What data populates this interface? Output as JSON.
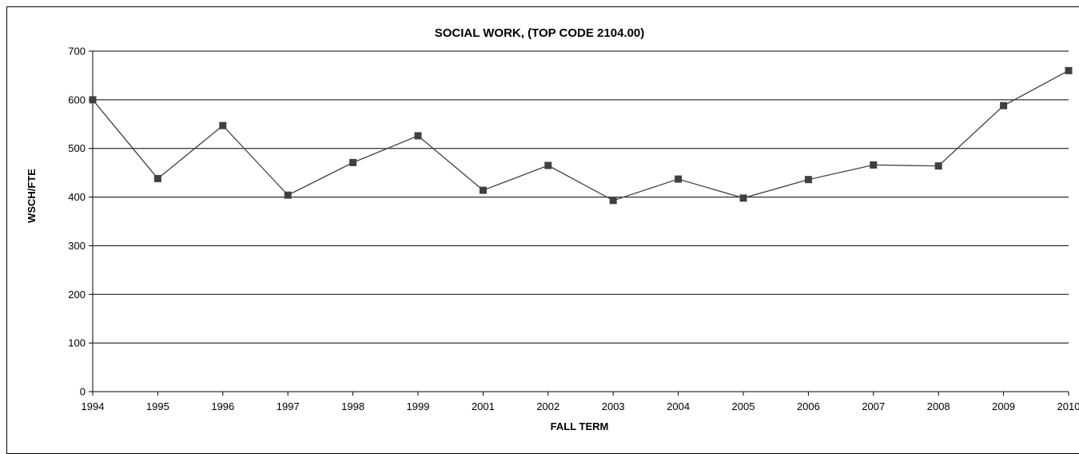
{
  "chart_data": {
    "type": "line",
    "title": "SOCIAL WORK, (TOP CODE 2104.00)",
    "xlabel": "FALL TERM",
    "ylabel": "WSCH/FTE",
    "ylim": [
      0,
      700
    ],
    "yticks": [
      0,
      100,
      200,
      300,
      400,
      500,
      600,
      700
    ],
    "grid": true,
    "legend": "none",
    "categories": [
      "1994",
      "1995",
      "1996",
      "1997",
      "1998",
      "1999",
      "2001",
      "2002",
      "2003",
      "2004",
      "2005",
      "2006",
      "2007",
      "2008",
      "2009",
      "2010"
    ],
    "series": [
      {
        "values": [
          600,
          438,
          547,
          404,
          471,
          526,
          414,
          465,
          393,
          437,
          398,
          436,
          466,
          464,
          588,
          660
        ],
        "color": "#404040"
      }
    ]
  }
}
